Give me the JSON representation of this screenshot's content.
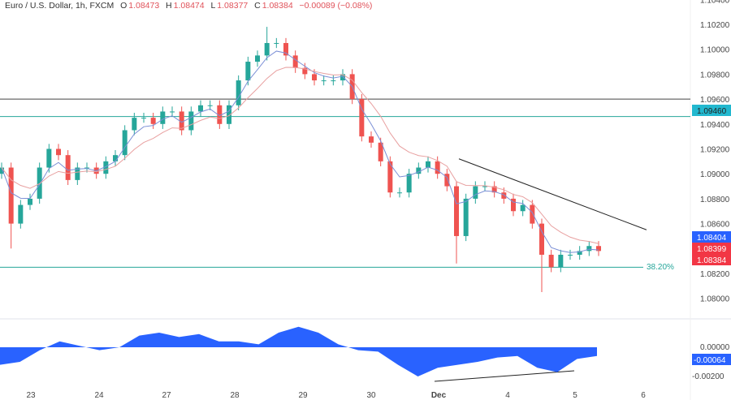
{
  "header": {
    "symbol": "Euro / U.S. Dollar, 1h, FXCM",
    "open_label": "O",
    "open": "1.08473",
    "high_label": "H",
    "high": "1.08474",
    "low_label": "L",
    "low": "1.08377",
    "close_label": "C",
    "close": "1.08384",
    "change": "−0.00089 (−0.08%)"
  },
  "colors": {
    "up": "#26a69a",
    "down": "#ef5350",
    "ma_fast": "#7b8fd6",
    "ma_slow": "#e8a0a0",
    "level_teal": "#26a69a",
    "level_dark": "#444444",
    "osc_fill": "#2962ff",
    "badge_blue": "#2962ff",
    "badge_red": "#f23645",
    "badge_teal": "#22b8cf"
  },
  "price_axis": {
    "ticks": [
      "1.10400",
      "1.10200",
      "1.10000",
      "1.09800",
      "1.09600",
      "1.09400",
      "1.09200",
      "1.09000",
      "1.08800",
      "1.08600",
      "1.08200",
      "1.08000"
    ],
    "badges": [
      {
        "label": "1.09460",
        "color": "#22b8cf",
        "text_color": "#222"
      },
      {
        "label": "1.08404",
        "color": "#2962ff",
        "text_color": "#fff"
      },
      {
        "label": "1.08399",
        "color": "#f23645",
        "text_color": "#fff"
      },
      {
        "label": "1.08384",
        "color": "#f23645",
        "text_color": "#fff"
      }
    ]
  },
  "osc_axis": {
    "ticks": [
      "0.00000",
      "-0.00200"
    ],
    "badge": "-0.00064"
  },
  "time_axis": {
    "ticks": [
      "23",
      "24",
      "27",
      "28",
      "29",
      "30",
      "Dec",
      "4",
      "5",
      "6"
    ]
  },
  "annotations": {
    "fib_label": "38.20%",
    "level_dark": 1.096,
    "level_teal": 1.0946,
    "fib_level": 1.0825,
    "trendline": [
      [
        1.0912
      ],
      [
        1.0855
      ]
    ]
  },
  "chart_data": {
    "type": "candlestick",
    "price_range": [
      1.079,
      1.1045
    ],
    "close": [
      1.0905,
      1.086,
      1.0875,
      1.088,
      1.0905,
      1.092,
      1.0915,
      1.0895,
      1.0905,
      1.0905,
      1.09,
      1.091,
      1.0915,
      1.0935,
      1.0945,
      1.0945,
      1.094,
      1.095,
      1.095,
      1.0935,
      1.095,
      1.0955,
      1.0955,
      1.094,
      1.0955,
      1.0975,
      1.099,
      1.0995,
      1.1005,
      1.1005,
      1.0995,
      1.0985,
      1.098,
      1.0975,
      1.0975,
      1.0975,
      1.098,
      1.096,
      1.093,
      1.0925,
      1.091,
      1.0885,
      1.0885,
      1.09,
      1.0905,
      1.091,
      1.09,
      1.089,
      1.085,
      1.088,
      1.089,
      1.089,
      1.0885,
      1.088,
      1.087,
      1.0875,
      1.086,
      1.0835,
      1.0825,
      1.0835,
      1.0835,
      1.0838,
      1.0842,
      1.0838
    ],
    "first_open": 1.09,
    "extremes": {
      "1": {
        "low": 1.084
      },
      "28": {
        "high": 1.1018
      },
      "48": {
        "low": 1.0828
      },
      "57": {
        "low": 1.0805
      }
    },
    "oscillator": {
      "range": [
        -0.0024,
        0.0018
      ],
      "values": [
        -0.0012,
        -0.001,
        -0.0002,
        0.0004,
        0.0001,
        -0.0002,
        0.0,
        0.0008,
        0.001,
        0.0007,
        0.0009,
        0.0004,
        0.0004,
        0.0002,
        0.001,
        0.0014,
        0.001,
        0.0002,
        -0.0002,
        -0.0003,
        -0.0012,
        -0.002,
        -0.0014,
        -0.0012,
        -0.001,
        -0.0007,
        -0.0006,
        -0.0014,
        -0.0017,
        -0.0008,
        -0.0006
      ]
    }
  }
}
